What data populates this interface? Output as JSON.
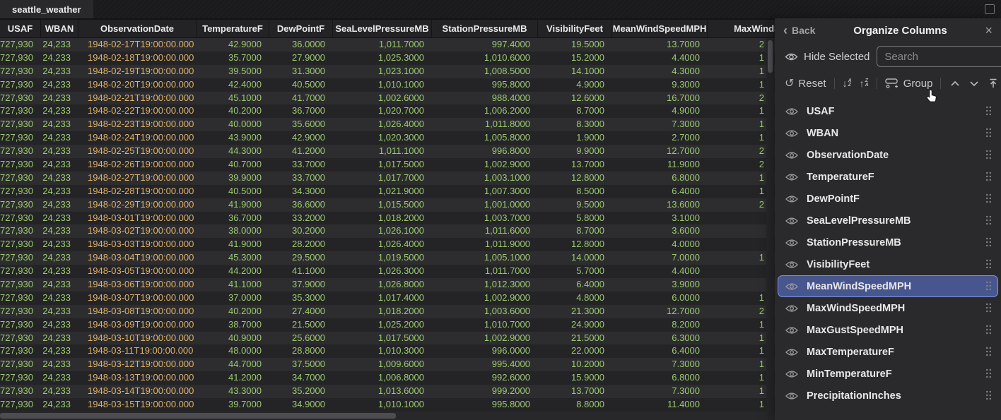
{
  "tab_bar": {
    "active_tab": "seattle_weather"
  },
  "table": {
    "columns": [
      "USAF",
      "WBAN",
      "ObservationDate",
      "TemperatureF",
      "DewPointF",
      "SeaLevelPressureMB",
      "StationPressureMB",
      "VisibilityFeet",
      "MeanWindSpeedMPH",
      "MaxWindSpeedMPH"
    ],
    "rows": [
      [
        "727,930",
        "24,233",
        "1948-02-17T19:00:00.000",
        "42.9000",
        "36.0000",
        "1,011.7000",
        "997.4000",
        "19.5000",
        "13.7000",
        "2"
      ],
      [
        "727,930",
        "24,233",
        "1948-02-18T19:00:00.000",
        "35.7000",
        "27.9000",
        "1,025.3000",
        "1,010.6000",
        "15.2000",
        "4.4000",
        "1"
      ],
      [
        "727,930",
        "24,233",
        "1948-02-19T19:00:00.000",
        "39.5000",
        "31.3000",
        "1,023.1000",
        "1,008.5000",
        "14.1000",
        "4.3000",
        "1"
      ],
      [
        "727,930",
        "24,233",
        "1948-02-20T19:00:00.000",
        "42.4000",
        "40.5000",
        "1,010.1000",
        "995.8000",
        "4.9000",
        "9.3000",
        "1"
      ],
      [
        "727,930",
        "24,233",
        "1948-02-21T19:00:00.000",
        "45.1000",
        "41.7000",
        "1,002.6000",
        "988.4000",
        "12.6000",
        "16.7000",
        "2"
      ],
      [
        "727,930",
        "24,233",
        "1948-02-22T19:00:00.000",
        "40.2000",
        "36.7000",
        "1,020.7000",
        "1,006.2000",
        "8.7000",
        "4.9000",
        "1"
      ],
      [
        "727,930",
        "24,233",
        "1948-02-23T19:00:00.000",
        "40.0000",
        "35.6000",
        "1,026.4000",
        "1,011.8000",
        "8.3000",
        "7.3000",
        "1"
      ],
      [
        "727,930",
        "24,233",
        "1948-02-24T19:00:00.000",
        "43.9000",
        "42.9000",
        "1,020.3000",
        "1,005.8000",
        "1.9000",
        "2.7000",
        "1"
      ],
      [
        "727,930",
        "24,233",
        "1948-02-25T19:00:00.000",
        "44.3000",
        "41.2000",
        "1,011.1000",
        "996.8000",
        "9.9000",
        "12.7000",
        "2"
      ],
      [
        "727,930",
        "24,233",
        "1948-02-26T19:00:00.000",
        "40.7000",
        "33.7000",
        "1,017.5000",
        "1,002.9000",
        "13.7000",
        "11.9000",
        "2"
      ],
      [
        "727,930",
        "24,233",
        "1948-02-27T19:00:00.000",
        "39.9000",
        "33.7000",
        "1,017.7000",
        "1,003.1000",
        "12.8000",
        "6.8000",
        "1"
      ],
      [
        "727,930",
        "24,233",
        "1948-02-28T19:00:00.000",
        "40.5000",
        "34.3000",
        "1,021.9000",
        "1,007.3000",
        "8.5000",
        "6.4000",
        "1"
      ],
      [
        "727,930",
        "24,233",
        "1948-02-29T19:00:00.000",
        "41.9000",
        "36.6000",
        "1,015.5000",
        "1,001.0000",
        "9.5000",
        "13.6000",
        "2"
      ],
      [
        "727,930",
        "24,233",
        "1948-03-01T19:00:00.000",
        "36.7000",
        "33.2000",
        "1,018.2000",
        "1,003.7000",
        "5.8000",
        "3.1000",
        ""
      ],
      [
        "727,930",
        "24,233",
        "1948-03-02T19:00:00.000",
        "38.0000",
        "30.2000",
        "1,026.1000",
        "1,011.6000",
        "8.7000",
        "3.6000",
        ""
      ],
      [
        "727,930",
        "24,233",
        "1948-03-03T19:00:00.000",
        "41.9000",
        "28.2000",
        "1,026.4000",
        "1,011.9000",
        "12.8000",
        "4.0000",
        ""
      ],
      [
        "727,930",
        "24,233",
        "1948-03-04T19:00:00.000",
        "45.3000",
        "29.5000",
        "1,019.5000",
        "1,005.1000",
        "14.0000",
        "7.0000",
        "1"
      ],
      [
        "727,930",
        "24,233",
        "1948-03-05T19:00:00.000",
        "44.2000",
        "41.1000",
        "1,026.3000",
        "1,011.7000",
        "5.7000",
        "4.4000",
        ""
      ],
      [
        "727,930",
        "24,233",
        "1948-03-06T19:00:00.000",
        "41.1000",
        "37.9000",
        "1,026.8000",
        "1,012.3000",
        "6.4000",
        "3.9000",
        ""
      ],
      [
        "727,930",
        "24,233",
        "1948-03-07T19:00:00.000",
        "37.0000",
        "35.3000",
        "1,017.4000",
        "1,002.9000",
        "4.8000",
        "6.0000",
        "1"
      ],
      [
        "727,930",
        "24,233",
        "1948-03-08T19:00:00.000",
        "40.2000",
        "27.4000",
        "1,018.2000",
        "1,003.6000",
        "21.3000",
        "12.7000",
        "2"
      ],
      [
        "727,930",
        "24,233",
        "1948-03-09T19:00:00.000",
        "38.7000",
        "21.5000",
        "1,025.2000",
        "1,010.7000",
        "24.9000",
        "8.2000",
        "1"
      ],
      [
        "727,930",
        "24,233",
        "1948-03-10T19:00:00.000",
        "40.9000",
        "25.6000",
        "1,017.5000",
        "1,002.9000",
        "21.5000",
        "6.3000",
        "1"
      ],
      [
        "727,930",
        "24,233",
        "1948-03-11T19:00:00.000",
        "48.0000",
        "28.8000",
        "1,010.3000",
        "996.0000",
        "22.0000",
        "6.4000",
        "1"
      ],
      [
        "727,930",
        "24,233",
        "1948-03-12T19:00:00.000",
        "44.7000",
        "37.5000",
        "1,009.6000",
        "995.4000",
        "10.2000",
        "7.3000",
        "1"
      ],
      [
        "727,930",
        "24,233",
        "1948-03-13T19:00:00.000",
        "41.2000",
        "34.7000",
        "1,006.8000",
        "992.6000",
        "15.9000",
        "6.8000",
        "1"
      ],
      [
        "727,930",
        "24,233",
        "1948-03-14T19:00:00.000",
        "43.3000",
        "35.2000",
        "1,013.6000",
        "999.2000",
        "13.7000",
        "7.3000",
        "1"
      ],
      [
        "727,930",
        "24,233",
        "1948-03-15T19:00:00.000",
        "39.7000",
        "34.9000",
        "1,010.1000",
        "995.8000",
        "8.8000",
        "11.4000",
        "1"
      ]
    ]
  },
  "panel": {
    "back_label": "Back",
    "back_chevron": "‹",
    "title": "Organize Columns",
    "close_glyph": "×",
    "hide_selected_label": "Hide Selected",
    "search_placeholder": "Search",
    "toolbar": {
      "reset_label": "Reset",
      "reset_glyph": "↺",
      "sort_asc_arrow": "↓",
      "sort_asc_letters": [
        "A",
        "Z"
      ],
      "sort_desc_arrow": "↑",
      "sort_desc_letters": [
        "Z",
        "A"
      ],
      "group_label": "Group"
    },
    "columns": [
      {
        "name": "USAF",
        "highlighted": false
      },
      {
        "name": "WBAN",
        "highlighted": false
      },
      {
        "name": "ObservationDate",
        "highlighted": false
      },
      {
        "name": "TemperatureF",
        "highlighted": false
      },
      {
        "name": "DewPointF",
        "highlighted": false
      },
      {
        "name": "SeaLevelPressureMB",
        "highlighted": false
      },
      {
        "name": "StationPressureMB",
        "highlighted": false
      },
      {
        "name": "VisibilityFeet",
        "highlighted": false
      },
      {
        "name": "MeanWindSpeedMPH",
        "highlighted": true
      },
      {
        "name": "MaxWindSpeedMPH",
        "highlighted": false
      },
      {
        "name": "MaxGustSpeedMPH",
        "highlighted": false
      },
      {
        "name": "MaxTemperatureF",
        "highlighted": false
      },
      {
        "name": "MinTemperatureF",
        "highlighted": false
      },
      {
        "name": "PrecipitationInches",
        "highlighted": false
      }
    ]
  },
  "colors": {
    "number_text": "#9cc96f",
    "date_text": "#ddb26b",
    "highlight_bg": "#47568e",
    "highlight_border": "#8095da",
    "panel_bg": "#2a2a2d",
    "row_odd": "#2d2d30",
    "row_even": "#242427"
  }
}
